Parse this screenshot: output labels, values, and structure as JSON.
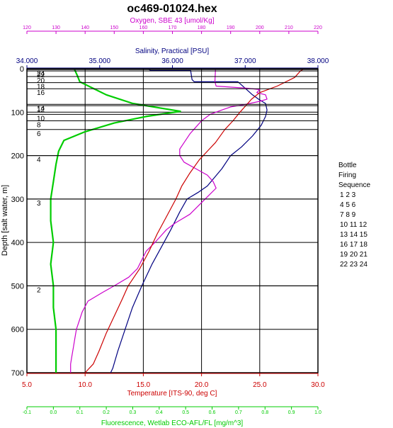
{
  "chart_data": {
    "type": "line",
    "title": "oc469-01024.hex",
    "ylabel": "Depth [salt water, m]",
    "ylim": [
      0,
      700
    ],
    "y_ticks": [
      0,
      100,
      200,
      300,
      400,
      500,
      600,
      700
    ],
    "axes": {
      "oxygen": {
        "label": "Oxygen, SBE 43 [umol/Kg]",
        "range": [
          120,
          220
        ],
        "ticks": [
          120,
          130,
          140,
          150,
          160,
          170,
          180,
          190,
          200,
          210,
          220
        ],
        "color": "#cc00cc"
      },
      "salinity": {
        "label": "Salinity, Practical [PSU]",
        "range": [
          34.0,
          38.0
        ],
        "ticks": [
          "34.000",
          "35.000",
          "36.000",
          "37.000",
          "38.000"
        ],
        "color": "#000080"
      },
      "temperature": {
        "label": "Temperature [ITS-90, deg C]",
        "range": [
          5.0,
          30.0
        ],
        "ticks": [
          "5.0",
          "10.0",
          "15.0",
          "20.0",
          "25.0",
          "30.0"
        ],
        "color": "#cc0000"
      },
      "fluorescence": {
        "label": "Fluorescence, Wetlab ECO-AFL/FL [mg/m^3]",
        "range": [
          -0.1,
          1.0
        ],
        "ticks": [
          "-0.1",
          "0.0",
          "0.1",
          "0.2",
          "0.3",
          "0.4",
          "0.5",
          "0.6",
          "0.7",
          "0.8",
          "0.9",
          "1.0"
        ],
        "color": "#00cc00"
      }
    },
    "series": [
      {
        "axis": "salinity",
        "color": "#000080",
        "points": [
          [
            35.68,
            2
          ],
          [
            35.7,
            4
          ],
          [
            36.25,
            4
          ],
          [
            36.27,
            25
          ],
          [
            36.3,
            30
          ],
          [
            36.9,
            30
          ],
          [
            37.0,
            45
          ],
          [
            37.1,
            60
          ],
          [
            37.2,
            72
          ],
          [
            37.28,
            80
          ],
          [
            37.3,
            95
          ],
          [
            37.28,
            110
          ],
          [
            37.22,
            130
          ],
          [
            37.1,
            155
          ],
          [
            36.95,
            180
          ],
          [
            36.8,
            200
          ],
          [
            36.68,
            230
          ],
          [
            36.58,
            250
          ],
          [
            36.48,
            270
          ],
          [
            36.35,
            285
          ],
          [
            36.2,
            300
          ],
          [
            36.1,
            330
          ],
          [
            35.98,
            370
          ],
          [
            35.85,
            410
          ],
          [
            35.72,
            450
          ],
          [
            35.58,
            500
          ],
          [
            35.45,
            550
          ],
          [
            35.35,
            600
          ],
          [
            35.25,
            650
          ],
          [
            35.18,
            690
          ],
          [
            35.15,
            700
          ]
        ]
      },
      {
        "axis": "oxygen",
        "color": "#cc00cc",
        "points": [
          [
            184.8,
            2
          ],
          [
            184.6,
            30
          ],
          [
            185.0,
            40
          ],
          [
            196.0,
            45
          ],
          [
            200.0,
            48
          ],
          [
            199.0,
            55
          ],
          [
            202.0,
            60
          ],
          [
            202.5,
            70
          ],
          [
            200.0,
            75
          ],
          [
            195.0,
            82
          ],
          [
            190.0,
            88
          ],
          [
            187.0,
            95
          ],
          [
            183.0,
            105
          ],
          [
            180.0,
            120
          ],
          [
            178.0,
            135
          ],
          [
            176.0,
            150
          ],
          [
            175.0,
            160
          ],
          [
            173.5,
            175
          ],
          [
            172.5,
            185
          ],
          [
            172.5,
            200
          ],
          [
            174.0,
            215
          ],
          [
            178.0,
            230
          ],
          [
            182.0,
            245
          ],
          [
            184.0,
            260
          ],
          [
            185.0,
            275
          ],
          [
            182.0,
            295
          ],
          [
            179.0,
            315
          ],
          [
            176.0,
            335
          ],
          [
            171.0,
            355
          ],
          [
            168.0,
            370
          ],
          [
            166.0,
            385
          ],
          [
            164.0,
            400
          ],
          [
            161.0,
            420
          ],
          [
            159.5,
            440
          ],
          [
            158.0,
            460
          ],
          [
            155.0,
            480
          ],
          [
            150.0,
            500
          ],
          [
            146.0,
            515
          ],
          [
            141.0,
            535
          ],
          [
            139.0,
            560
          ],
          [
            138.0,
            580
          ],
          [
            137.0,
            600
          ],
          [
            136.5,
            620
          ],
          [
            136.0,
            640
          ],
          [
            135.5,
            660
          ],
          [
            135.0,
            680
          ],
          [
            135.0,
            700
          ]
        ]
      },
      {
        "axis": "temperature",
        "color": "#cc0000",
        "points": [
          [
            28.7,
            2
          ],
          [
            28.5,
            5
          ],
          [
            28.0,
            20
          ],
          [
            26.5,
            40
          ],
          [
            25.0,
            55
          ],
          [
            24.3,
            70
          ],
          [
            23.8,
            85
          ],
          [
            23.3,
            100
          ],
          [
            22.7,
            120
          ],
          [
            22.0,
            140
          ],
          [
            21.2,
            170
          ],
          [
            20.5,
            190
          ],
          [
            19.8,
            210
          ],
          [
            19.0,
            240
          ],
          [
            18.3,
            270
          ],
          [
            17.8,
            300
          ],
          [
            17.0,
            340
          ],
          [
            16.2,
            380
          ],
          [
            15.5,
            420
          ],
          [
            14.7,
            460
          ],
          [
            13.7,
            500
          ],
          [
            13.2,
            530
          ],
          [
            12.5,
            570
          ],
          [
            11.8,
            610
          ],
          [
            11.2,
            650
          ],
          [
            10.7,
            680
          ],
          [
            10.0,
            700
          ]
        ]
      },
      {
        "axis": "fluorescence",
        "color": "#00cc00",
        "points": [
          [
            0.08,
            2
          ],
          [
            0.09,
            15
          ],
          [
            0.1,
            30
          ],
          [
            0.15,
            45
          ],
          [
            0.2,
            60
          ],
          [
            0.3,
            80
          ],
          [
            0.4,
            90
          ],
          [
            0.48,
            98
          ],
          [
            0.35,
            110
          ],
          [
            0.23,
            125
          ],
          [
            0.12,
            145
          ],
          [
            0.04,
            165
          ],
          [
            0.02,
            190
          ],
          [
            0.01,
            220
          ],
          [
            0.0,
            260
          ],
          [
            -0.01,
            300
          ],
          [
            -0.01,
            350
          ],
          [
            0.0,
            400
          ],
          [
            -0.01,
            450
          ],
          [
            0.0,
            500
          ],
          [
            0.0,
            550
          ],
          [
            0.01,
            600
          ],
          [
            0.01,
            650
          ],
          [
            0.01,
            700
          ]
        ]
      }
    ],
    "bottle_firings": [
      {
        "label": "24",
        "depth": 2
      },
      {
        "label": "22",
        "depth": 5
      },
      {
        "label": "20",
        "depth": 18
      },
      {
        "label": "18",
        "depth": 32
      },
      {
        "label": "16",
        "depth": 46
      },
      {
        "label": "14",
        "depth": 82
      },
      {
        "label": "12",
        "depth": 85
      },
      {
        "label": "10",
        "depth": 105
      },
      {
        "label": "8",
        "depth": 120
      },
      {
        "label": "6",
        "depth": 140
      },
      {
        "label": "4",
        "depth": 200
      },
      {
        "label": "3",
        "depth": 300
      },
      {
        "label": "2",
        "depth": 500
      }
    ],
    "legend": {
      "title_lines": [
        "Bottle",
        "Firing",
        "Sequence"
      ],
      "rows": [
        "1  2  3",
        "4  5  6",
        "7  8  9",
        "10 11 12",
        "13 14 15",
        "16 17 18",
        "19 20 21",
        "22 23 24"
      ]
    }
  }
}
